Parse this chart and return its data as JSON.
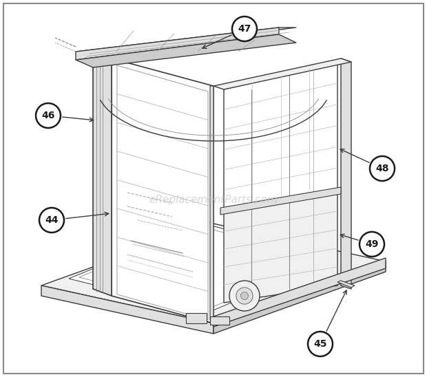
{
  "background_color": "#ffffff",
  "line_color": "#3a3a3a",
  "fill_white": "#ffffff",
  "fill_light": "#f0f0f0",
  "fill_mid": "#e0e0e0",
  "fill_dark": "#cccccc",
  "watermark_text": "eReplacementParts.com",
  "watermark_color": "#c8c8c8",
  "watermark_fontsize": 11,
  "callout_bg": "#ffffff",
  "callout_edge": "#1a1a1a",
  "callout_text": "#1a1a1a",
  "fig_width": 6.2,
  "fig_height": 5.48,
  "dpi": 100
}
